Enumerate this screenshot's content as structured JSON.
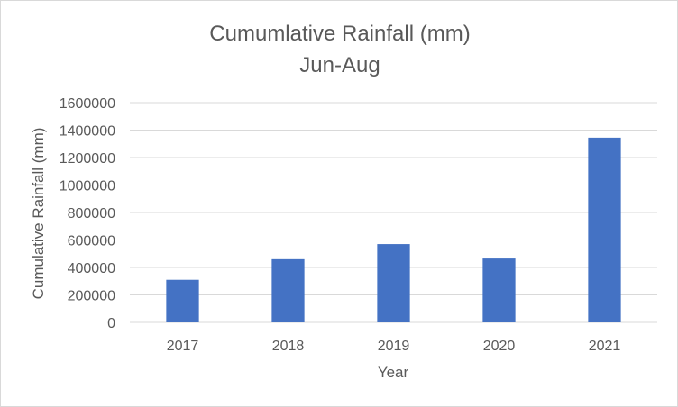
{
  "chart_data": {
    "type": "bar",
    "title": "Cumumlative Rainfall (mm)",
    "subtitle": "Jun-Aug",
    "xlabel": "Year",
    "ylabel": "Cumulative Rainfall (mm)",
    "categories": [
      "2017",
      "2018",
      "2019",
      "2020",
      "2021"
    ],
    "values": [
      310000,
      460000,
      570000,
      465000,
      1345000
    ],
    "ylim": [
      0,
      1600000
    ],
    "yticks": [
      0,
      200000,
      400000,
      600000,
      800000,
      1000000,
      1200000,
      1400000,
      1600000
    ],
    "ytick_labels": [
      "0",
      "200000",
      "400000",
      "600000",
      "800000",
      "1000000",
      "1200000",
      "1400000",
      "1600000"
    ],
    "grid": true,
    "legend": "none",
    "colors": {
      "bar": "#4472c4",
      "grid": "#d9d9d9",
      "text": "#595959"
    }
  }
}
